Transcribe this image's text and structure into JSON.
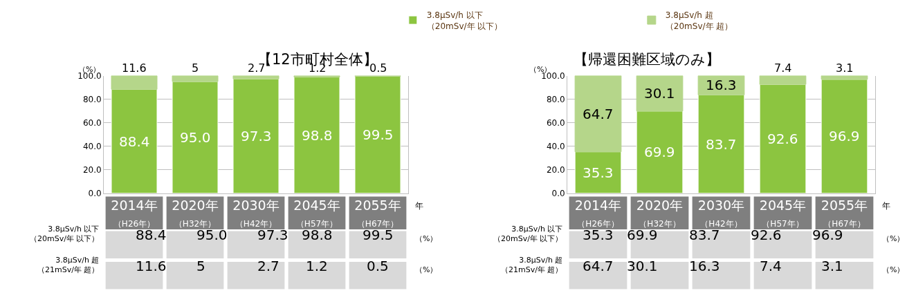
{
  "chart_data": [
    {
      "type": "bar",
      "stacked": true,
      "title": "【12市町村全体】",
      "xlabel": "年",
      "ylabel": "（%）",
      "categories": [
        "2014年（H26年）",
        "2020年（H32年）",
        "2030年（H42年）",
        "2045年（H57年）",
        "2055年（H67年）"
      ],
      "series": [
        {
          "name": "3.8μSv/h 以下（20mSv/年 以下）",
          "color": "#8cc540",
          "values": [
            88.4,
            95.0,
            97.3,
            98.8,
            99.5
          ],
          "value_labels": [
            "88.4",
            "95.0",
            "97.3",
            "98.8",
            "99.5"
          ]
        },
        {
          "name": "3.8μSv/h 超（20mSv/年 超）",
          "color": "#b5d68a",
          "values": [
            11.6,
            5,
            2.7,
            1.2,
            0.5
          ],
          "value_labels": [
            "11.6",
            "5",
            "2.7",
            "1.2",
            "0.5"
          ]
        }
      ],
      "ylim": [
        0,
        100
      ],
      "yticks": [
        {
          "value": 0,
          "label": "0.0"
        },
        {
          "value": 20,
          "label": "20.0"
        },
        {
          "value": 40,
          "label": "40.0"
        },
        {
          "value": 60,
          "label": "60.0"
        },
        {
          "value": 80,
          "label": "80.0"
        },
        {
          "value": 100,
          "label": "100.0"
        }
      ],
      "grid": "y",
      "legend": "top",
      "annotations": [
        "3.8μSv/h 以下（20mSv/年 以下）",
        "3.8μSv/h 超（21mSv/年 超）",
        "（%）",
        "（%）"
      ]
    },
    {
      "type": "bar",
      "stacked": true,
      "title": "【帰還困難区域のみ】",
      "xlabel": "年",
      "ylabel": "（%）",
      "categories": [
        "2014年（H26年）",
        "2020年（H32年）",
        "2030年（H42年）",
        "2045年（H57年）",
        "2055年（H67年）"
      ],
      "series": [
        {
          "color": "#8cc540",
          "values": [
            35.3,
            69.9,
            83.7,
            92.6,
            96.9
          ],
          "value_labels": [
            "35.3",
            "69.9",
            "83.7",
            "92.6",
            "96.9"
          ]
        },
        {
          "color": "#b5d68a",
          "values": [
            64.7,
            30.1,
            16.3,
            7.4,
            3.1
          ],
          "value_labels": [
            "64.7",
            "30.1",
            "16.3",
            "7.4",
            "3.1"
          ]
        }
      ],
      "ylim": [
        0,
        100
      ],
      "yticks": [
        {
          "value": 0,
          "label": "0.0"
        },
        {
          "value": 20,
          "label": "20.0"
        },
        {
          "value": 40,
          "label": "40.0"
        },
        {
          "value": 60,
          "label": "60.0"
        },
        {
          "value": 80,
          "label": "80.0"
        },
        {
          "value": 100,
          "label": "100.0"
        }
      ],
      "grid": "y",
      "annotations": [
        "3.8μSv/h 以下（20mSv/年 以下）",
        "3.8μSv/h 超（21mSv/年 超）",
        "（%）",
        "（%）"
      ]
    }
  ]
}
